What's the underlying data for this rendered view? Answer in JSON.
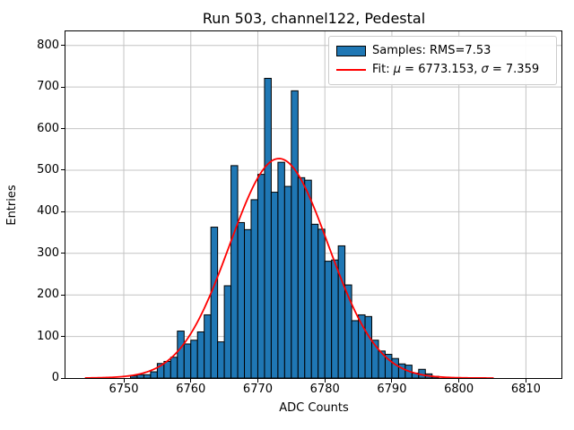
{
  "figure": {
    "title": "Run 503, channel122, Pedestal",
    "xlabel": "ADC Counts",
    "ylabel": "Entries"
  },
  "legend": {
    "samples_label": "Samples: RMS=7.53",
    "fit_prefix": "Fit: ",
    "fit_mu_symbol": "μ",
    "fit_mu_value": " = 6773.153, ",
    "fit_sigma_symbol": "σ",
    "fit_sigma_value": " = 7.359"
  },
  "chart_data": {
    "type": "bar",
    "subtype": "histogram-with-gaussian-fit",
    "title": "Run 503, channel122, Pedestal",
    "xlabel": "ADC Counts",
    "ylabel": "Entries",
    "xlim": [
      6741.3,
      6815.3
    ],
    "ylim": [
      0,
      834
    ],
    "xticks": [
      6750,
      6760,
      6770,
      6780,
      6790,
      6800,
      6810
    ],
    "yticks": [
      0,
      100,
      200,
      300,
      400,
      500,
      600,
      700,
      800
    ],
    "grid": true,
    "legend_position": "upper right",
    "legend_entries": [
      "Samples: RMS=7.53",
      "Fit: μ = 6773.153, σ = 7.359"
    ],
    "bins": {
      "start": 6751,
      "width": 1,
      "counts": [
        5,
        8,
        8,
        15,
        35,
        40,
        50,
        113,
        82,
        91,
        111,
        152,
        363,
        87,
        222,
        511,
        374,
        357,
        429,
        490,
        721,
        447,
        519,
        461,
        691,
        482,
        476,
        370,
        358,
        281,
        284,
        318,
        224,
        138,
        152,
        148,
        91,
        65,
        57,
        47,
        34,
        31,
        12,
        21,
        10,
        4
      ]
    },
    "fit_curve": {
      "shape": "gaussian",
      "mu": 6773.153,
      "sigma": 7.359,
      "amplitude": 528,
      "x_start": 6744.2,
      "x_end": 6805.4,
      "rms": 7.53
    },
    "colors": {
      "bar_fill": "#1f77b4",
      "bar_edge": "#000000",
      "fit_line": "#ff0000",
      "grid_line": "#c4c4c4",
      "axis": "#000000",
      "legend_border": "#cccccc"
    }
  }
}
